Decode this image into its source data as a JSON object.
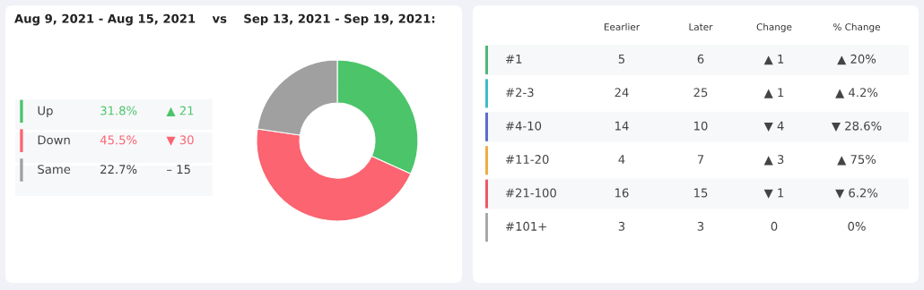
{
  "chart_data": [
    {
      "type": "donut",
      "title": "Aug 9, 2021 - Aug 15, 2021    vs    Sep 13, 2021 - Sep 19, 2021:",
      "categories": [
        "Up",
        "Down",
        "Same"
      ],
      "values": [
        31.8,
        45.5,
        22.7
      ],
      "colors": [
        "#4cc46a",
        "#fb6470",
        "#a0a0a0"
      ],
      "value_labels": [
        "31.8%",
        "45.5%",
        "22.7%"
      ],
      "annotations": [
        "▲ 21",
        "▼ 30",
        "– 15"
      ],
      "legend": "left"
    },
    {
      "type": "other",
      "categories": [
        "Eearlier",
        "Later",
        "Change",
        "% Change"
      ],
      "y_categories": [
        "#1",
        "#2-3",
        "#4-10",
        "#11-20",
        "#21-100",
        "#101+"
      ],
      "colors": [
        "#4cb87a",
        "#3fbcc8",
        "#5b6ccf",
        "#f0ac45",
        "#ee5768",
        "#a8a8a8"
      ],
      "cell_labels": [
        [
          "5",
          "6",
          "▲ 1",
          "▲ 20%"
        ],
        [
          "24",
          "25",
          "▲ 1",
          "▲ 4.2%"
        ],
        [
          "14",
          "10",
          "▼ 4",
          "▼ 28.6%"
        ],
        [
          "4",
          "7",
          "▲ 3",
          "▲ 75%"
        ],
        [
          "16",
          "15",
          "▼ 1",
          "▼ 6.2%"
        ],
        [
          "3",
          "3",
          "0",
          "0%"
        ]
      ]
    }
  ]
}
